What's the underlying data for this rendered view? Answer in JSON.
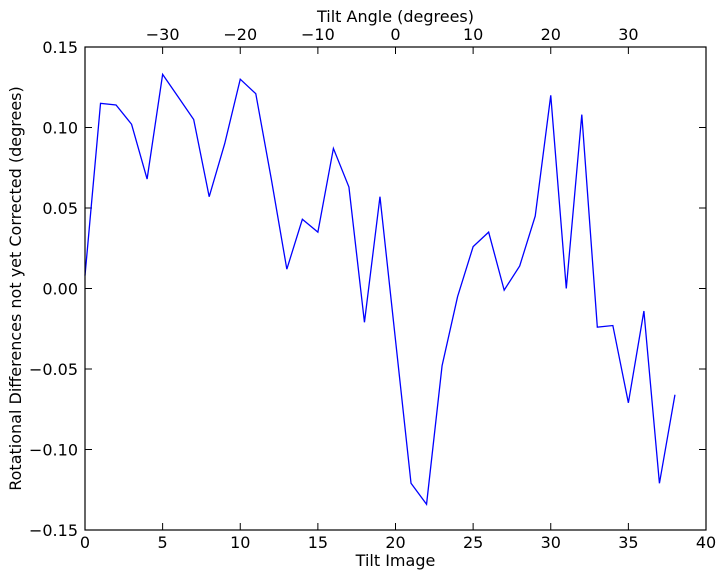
{
  "chart_data": {
    "type": "line",
    "title": "",
    "xlabel": "Tilt Image",
    "ylabel": "Rotational Differences not yet Corrected (degrees)",
    "top_xlabel": "Tilt Angle (degrees)",
    "xlim": [
      0,
      40
    ],
    "ylim": [
      -0.15,
      0.15
    ],
    "x_ticks": [
      0,
      5,
      10,
      15,
      20,
      25,
      30,
      35,
      40
    ],
    "y_ticks": [
      -0.15,
      -0.1,
      -0.05,
      0.0,
      0.05,
      0.1,
      0.15
    ],
    "x_tick_labels": [
      "0",
      "5",
      "10",
      "15",
      "20",
      "25",
      "30",
      "35",
      "40"
    ],
    "y_tick_labels": [
      "−0.15",
      "−0.10",
      "−0.05",
      "0.00",
      "0.05",
      "0.10",
      "0.15"
    ],
    "top_ticks": [
      {
        "label": "−30",
        "at_tilt_image": 5
      },
      {
        "label": "−20",
        "at_tilt_image": 10
      },
      {
        "label": "−10",
        "at_tilt_image": 15
      },
      {
        "label": "0",
        "at_tilt_image": 20
      },
      {
        "label": "10",
        "at_tilt_image": 25
      },
      {
        "label": "20",
        "at_tilt_image": 30
      },
      {
        "label": "30",
        "at_tilt_image": 35
      }
    ],
    "grid": false,
    "line_color": "#0000ff",
    "series": [
      {
        "x": [
          0,
          1,
          2,
          3,
          4,
          5,
          6,
          7,
          8,
          9,
          10,
          11,
          12,
          13,
          14,
          15,
          16,
          17,
          18,
          19,
          20,
          21,
          22,
          23,
          24,
          25,
          26,
          27,
          28,
          29,
          30,
          31,
          32,
          33,
          34,
          35,
          36,
          37,
          38
        ],
        "values": [
          0.008,
          0.115,
          0.114,
          0.102,
          0.068,
          0.133,
          0.119,
          0.105,
          0.057,
          0.09,
          0.13,
          0.121,
          0.068,
          0.012,
          0.043,
          0.035,
          0.087,
          0.063,
          -0.021,
          0.057,
          -0.032,
          -0.121,
          -0.134,
          -0.048,
          -0.005,
          0.026,
          0.035,
          -0.001,
          0.014,
          0.045,
          0.12,
          0.0,
          0.108,
          -0.024,
          -0.023,
          -0.071,
          -0.014,
          -0.121,
          -0.066
        ]
      }
    ]
  }
}
